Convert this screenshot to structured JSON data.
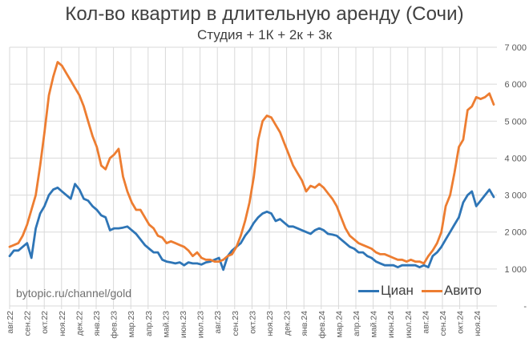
{
  "chart_data": {
    "type": "line",
    "title": "Кол-во квартир в длительную аренду (Сочи)",
    "subtitle": "Студия + 1К + 2к + 3к",
    "xlabel": "",
    "ylabel": "",
    "ylim": [
      0,
      7000
    ],
    "y_ticks": [
      "-",
      "1 000",
      "2 000",
      "3 000",
      "4 000",
      "5 000",
      "6 000",
      "7 000"
    ],
    "y_axis_position": "right",
    "grid": true,
    "legend_position": "bottom-right",
    "categories": [
      "авг.22",
      "сен.22",
      "окт.22",
      "ноя.22",
      "дек.22",
      "янв.23",
      "фев.23",
      "мар.23",
      "апр.23",
      "май.23",
      "июн.23",
      "июл.23",
      "авг.23",
      "сен.23",
      "окт.23",
      "ноя.23",
      "дек.23",
      "янв.24",
      "фев.24",
      "мар.24",
      "апр.24",
      "май.24",
      "июн.24",
      "июл.24",
      "авг.24",
      "сен.24",
      "окт.24",
      "ноя.24"
    ],
    "points_per_category": 4,
    "series": [
      {
        "name": "Циан",
        "color": "#2E75B6",
        "values": [
          1350,
          1500,
          1500,
          1600,
          1700,
          1300,
          2100,
          2500,
          2700,
          3000,
          3150,
          3200,
          3100,
          3000,
          2900,
          3300,
          3150,
          2900,
          2850,
          2700,
          2600,
          2450,
          2400,
          2050,
          2100,
          2100,
          2120,
          2150,
          2050,
          1950,
          1800,
          1650,
          1550,
          1450,
          1450,
          1250,
          1200,
          1180,
          1150,
          1180,
          1100,
          1180,
          1150,
          1150,
          1120,
          1180,
          1200,
          1250,
          1300,
          980,
          1350,
          1500,
          1600,
          1700,
          1900,
          2050,
          2250,
          2400,
          2500,
          2550,
          2500,
          2300,
          2350,
          2250,
          2150,
          2150,
          2100,
          2050,
          2000,
          1950,
          2050,
          2100,
          2050,
          1950,
          1930,
          1900,
          1800,
          1700,
          1600,
          1550,
          1450,
          1450,
          1350,
          1300,
          1200,
          1150,
          1100,
          1100,
          1100,
          1050,
          1100,
          1100,
          1100,
          1100,
          1050,
          1100,
          1050,
          1350,
          1450,
          1600,
          1800,
          2000,
          2200,
          2400,
          2800,
          3000,
          3100,
          2700,
          2850,
          3000,
          3150,
          2950
        ]
      },
      {
        "name": "Авито",
        "color": "#ED7D31",
        "values": [
          1600,
          1650,
          1700,
          1900,
          2200,
          2600,
          3000,
          3800,
          4700,
          5700,
          6200,
          6600,
          6500,
          6300,
          6100,
          5900,
          5700,
          5400,
          5000,
          4600,
          4300,
          3800,
          3700,
          4000,
          4100,
          4250,
          3500,
          3100,
          2800,
          2600,
          2600,
          2400,
          2200,
          2100,
          1900,
          1850,
          1700,
          1750,
          1700,
          1650,
          1600,
          1500,
          1350,
          1450,
          1300,
          1250,
          1250,
          1200,
          1200,
          1250,
          1350,
          1400,
          1600,
          1900,
          2300,
          2800,
          3500,
          4500,
          5000,
          5150,
          5100,
          4900,
          4700,
          4400,
          4100,
          3800,
          3600,
          3400,
          3100,
          3250,
          3200,
          3300,
          3200,
          3050,
          2900,
          2700,
          2400,
          2100,
          1900,
          1800,
          1700,
          1650,
          1600,
          1550,
          1450,
          1400,
          1400,
          1350,
          1300,
          1250,
          1250,
          1200,
          1250,
          1200,
          1200,
          1150,
          1350,
          1500,
          1700,
          2000,
          2700,
          3000,
          3600,
          4300,
          4500,
          5300,
          5400,
          5650,
          5600,
          5650,
          5750,
          5450
        ]
      }
    ],
    "annotations": [
      "bytopic.ru/channel/gold"
    ]
  },
  "header": {
    "title": "Кол-во квартир в длительную аренду (Сочи)",
    "subtitle": "Студия + 1К + 2к + 3к"
  },
  "watermark": "bytopic.ru/channel/gold",
  "legend": {
    "items": [
      {
        "label": "Циан",
        "color": "#2E75B6"
      },
      {
        "label": "Авито",
        "color": "#ED7D31"
      }
    ]
  }
}
